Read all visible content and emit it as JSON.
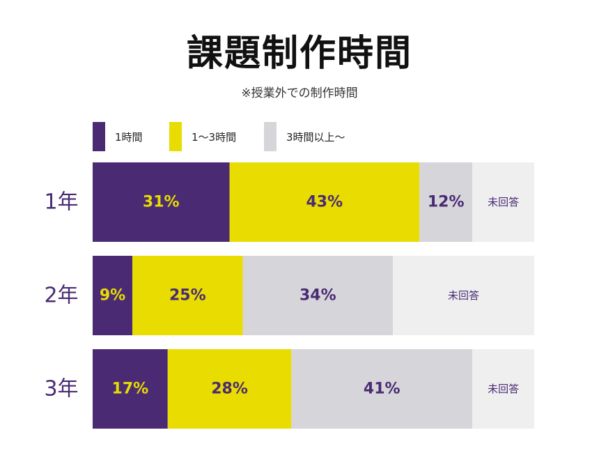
{
  "chart_data": {
    "type": "bar",
    "orientation": "horizontal",
    "stacked": true,
    "title": "課題制作時間",
    "subtitle": "※授業外での制作時間",
    "categories": [
      "1年",
      "2年",
      "3年"
    ],
    "series": [
      {
        "name": "1時間",
        "color": "#4a2b73",
        "label_color": "#e8dc00",
        "values": [
          31,
          9,
          17
        ]
      },
      {
        "name": "1〜3時間",
        "color": "#e8dc00",
        "label_color": "#4a2b73",
        "values": [
          43,
          25,
          28
        ]
      },
      {
        "name": "3時間以上〜",
        "color": "#d6d5da",
        "label_color": "#4a2b73",
        "values": [
          12,
          34,
          41
        ]
      },
      {
        "name": "未回答",
        "color": "#efefef",
        "label_color": "#4a2b73",
        "values": [
          14,
          32,
          14
        ]
      }
    ],
    "data_labels": [
      [
        "31%",
        "43%",
        "12%",
        "未回答"
      ],
      [
        "9%",
        "25%",
        "34%",
        "未回答"
      ],
      [
        "17%",
        "28%",
        "41%",
        "未回答"
      ]
    ],
    "xlim": [
      0,
      100
    ],
    "legend_position": "top",
    "grid": false
  },
  "colors": {
    "category_label": "#4a2b73",
    "title": "#111111"
  }
}
